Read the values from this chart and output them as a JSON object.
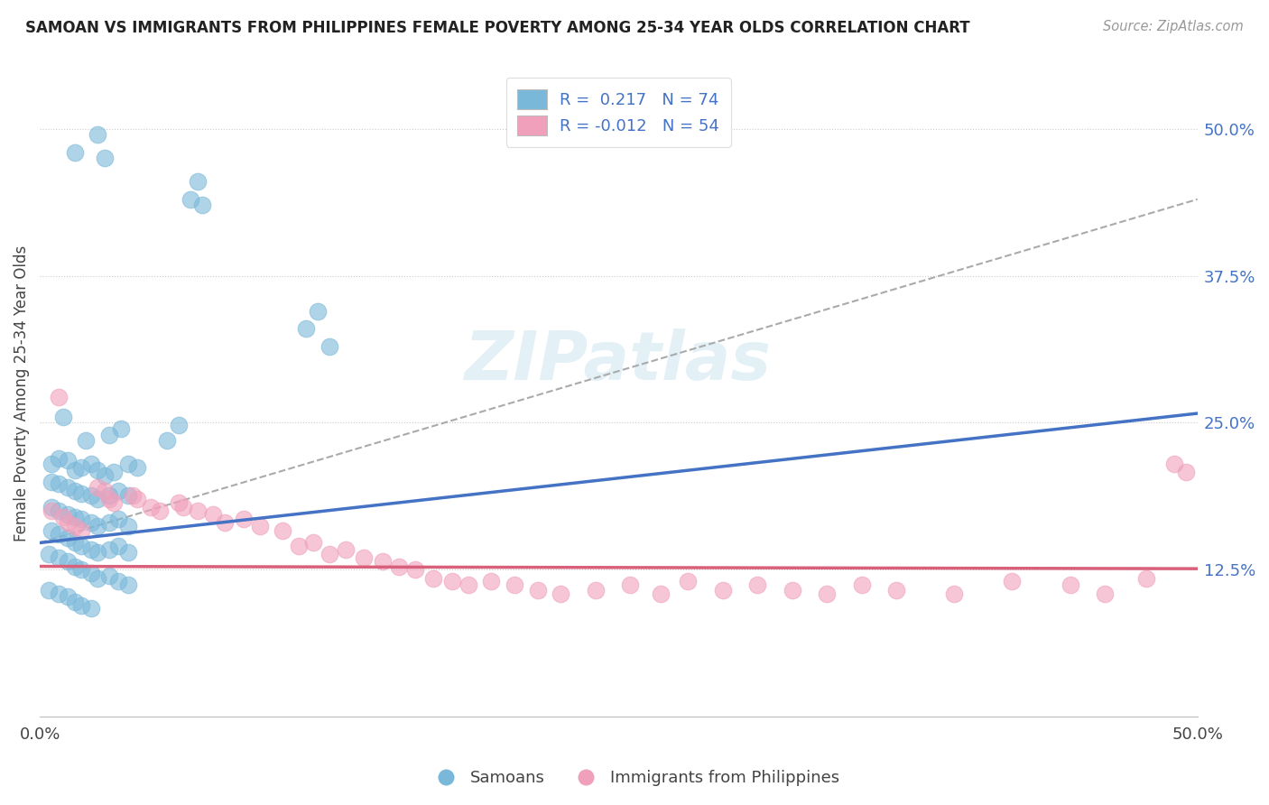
{
  "title": "SAMOAN VS IMMIGRANTS FROM PHILIPPINES FEMALE POVERTY AMONG 25-34 YEAR OLDS CORRELATION CHART",
  "source": "Source: ZipAtlas.com",
  "ylabel": "Female Poverty Among 25-34 Year Olds",
  "y_ticks_labels": [
    "50.0%",
    "37.5%",
    "25.0%",
    "12.5%"
  ],
  "y_tick_vals": [
    0.5,
    0.375,
    0.25,
    0.125
  ],
  "xlim": [
    0.0,
    0.5
  ],
  "ylim": [
    0.0,
    0.55
  ],
  "blue_color": "#7ab8d9",
  "pink_color": "#f0a0bb",
  "blue_line_color": "#4472c4",
  "pink_line_color": "#d9607a",
  "grey_line_color": "#aaaaaa",
  "watermark": "ZIPatlas",
  "blue_trend_x": [
    0.0,
    0.5
  ],
  "blue_trend_y": [
    0.148,
    0.258
  ],
  "pink_trend_x": [
    0.0,
    0.5
  ],
  "pink_trend_y": [
    0.128,
    0.126
  ],
  "grey_trend_x": [
    0.0,
    0.5
  ],
  "grey_trend_y": [
    0.148,
    0.44
  ],
  "samoans": [
    [
      0.015,
      0.48
    ],
    [
      0.025,
      0.495
    ],
    [
      0.028,
      0.475
    ],
    [
      0.065,
      0.44
    ],
    [
      0.068,
      0.455
    ],
    [
      0.07,
      0.435
    ],
    [
      0.115,
      0.33
    ],
    [
      0.12,
      0.345
    ],
    [
      0.125,
      0.315
    ],
    [
      0.01,
      0.255
    ],
    [
      0.02,
      0.235
    ],
    [
      0.03,
      0.24
    ],
    [
      0.035,
      0.245
    ],
    [
      0.055,
      0.235
    ],
    [
      0.06,
      0.248
    ],
    [
      0.005,
      0.215
    ],
    [
      0.008,
      0.22
    ],
    [
      0.012,
      0.218
    ],
    [
      0.015,
      0.21
    ],
    [
      0.018,
      0.212
    ],
    [
      0.022,
      0.215
    ],
    [
      0.025,
      0.21
    ],
    [
      0.028,
      0.205
    ],
    [
      0.032,
      0.208
    ],
    [
      0.038,
      0.215
    ],
    [
      0.042,
      0.212
    ],
    [
      0.005,
      0.2
    ],
    [
      0.008,
      0.198
    ],
    [
      0.012,
      0.195
    ],
    [
      0.015,
      0.192
    ],
    [
      0.018,
      0.19
    ],
    [
      0.022,
      0.188
    ],
    [
      0.025,
      0.185
    ],
    [
      0.03,
      0.188
    ],
    [
      0.034,
      0.192
    ],
    [
      0.038,
      0.188
    ],
    [
      0.005,
      0.178
    ],
    [
      0.008,
      0.175
    ],
    [
      0.012,
      0.172
    ],
    [
      0.015,
      0.17
    ],
    [
      0.018,
      0.168
    ],
    [
      0.022,
      0.165
    ],
    [
      0.025,
      0.162
    ],
    [
      0.03,
      0.165
    ],
    [
      0.034,
      0.168
    ],
    [
      0.038,
      0.162
    ],
    [
      0.005,
      0.158
    ],
    [
      0.008,
      0.155
    ],
    [
      0.012,
      0.152
    ],
    [
      0.015,
      0.148
    ],
    [
      0.018,
      0.145
    ],
    [
      0.022,
      0.142
    ],
    [
      0.025,
      0.14
    ],
    [
      0.03,
      0.142
    ],
    [
      0.034,
      0.145
    ],
    [
      0.038,
      0.14
    ],
    [
      0.004,
      0.138
    ],
    [
      0.008,
      0.135
    ],
    [
      0.012,
      0.132
    ],
    [
      0.015,
      0.128
    ],
    [
      0.018,
      0.125
    ],
    [
      0.022,
      0.122
    ],
    [
      0.025,
      0.118
    ],
    [
      0.03,
      0.12
    ],
    [
      0.034,
      0.115
    ],
    [
      0.038,
      0.112
    ],
    [
      0.004,
      0.108
    ],
    [
      0.008,
      0.105
    ],
    [
      0.012,
      0.102
    ],
    [
      0.015,
      0.098
    ],
    [
      0.018,
      0.095
    ],
    [
      0.022,
      0.092
    ]
  ],
  "philippines": [
    [
      0.008,
      0.272
    ],
    [
      0.005,
      0.175
    ],
    [
      0.01,
      0.17
    ],
    [
      0.012,
      0.165
    ],
    [
      0.015,
      0.162
    ],
    [
      0.018,
      0.158
    ],
    [
      0.025,
      0.195
    ],
    [
      0.028,
      0.192
    ],
    [
      0.03,
      0.185
    ],
    [
      0.032,
      0.182
    ],
    [
      0.04,
      0.188
    ],
    [
      0.042,
      0.185
    ],
    [
      0.048,
      0.178
    ],
    [
      0.052,
      0.175
    ],
    [
      0.06,
      0.182
    ],
    [
      0.062,
      0.178
    ],
    [
      0.068,
      0.175
    ],
    [
      0.075,
      0.172
    ],
    [
      0.08,
      0.165
    ],
    [
      0.088,
      0.168
    ],
    [
      0.095,
      0.162
    ],
    [
      0.105,
      0.158
    ],
    [
      0.112,
      0.145
    ],
    [
      0.118,
      0.148
    ],
    [
      0.125,
      0.138
    ],
    [
      0.132,
      0.142
    ],
    [
      0.14,
      0.135
    ],
    [
      0.148,
      0.132
    ],
    [
      0.155,
      0.128
    ],
    [
      0.162,
      0.125
    ],
    [
      0.17,
      0.118
    ],
    [
      0.178,
      0.115
    ],
    [
      0.185,
      0.112
    ],
    [
      0.195,
      0.115
    ],
    [
      0.205,
      0.112
    ],
    [
      0.215,
      0.108
    ],
    [
      0.225,
      0.105
    ],
    [
      0.24,
      0.108
    ],
    [
      0.255,
      0.112
    ],
    [
      0.268,
      0.105
    ],
    [
      0.28,
      0.115
    ],
    [
      0.295,
      0.108
    ],
    [
      0.31,
      0.112
    ],
    [
      0.325,
      0.108
    ],
    [
      0.34,
      0.105
    ],
    [
      0.355,
      0.112
    ],
    [
      0.37,
      0.108
    ],
    [
      0.395,
      0.105
    ],
    [
      0.42,
      0.115
    ],
    [
      0.445,
      0.112
    ],
    [
      0.46,
      0.105
    ],
    [
      0.478,
      0.118
    ],
    [
      0.49,
      0.215
    ],
    [
      0.495,
      0.208
    ]
  ]
}
